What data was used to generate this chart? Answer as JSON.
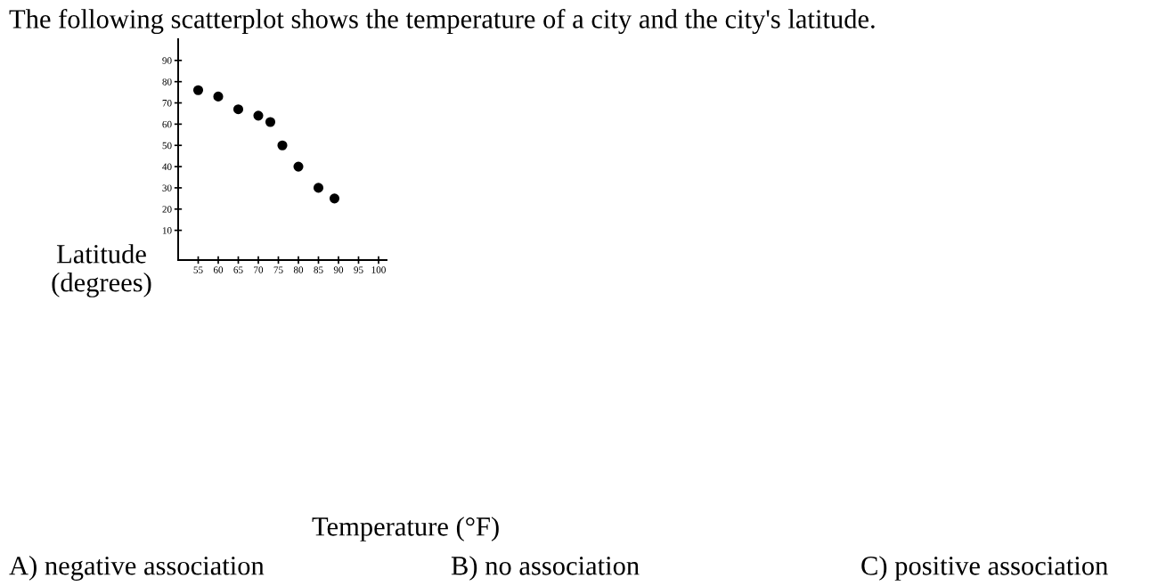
{
  "chart_data": {
    "type": "scatter",
    "title": "The following scatterplot shows the temperature of a city and the city's latitude.",
    "ylabel": "Latitude\n(degrees)",
    "x": [
      55,
      60,
      65,
      70,
      73,
      76,
      80,
      85,
      89
    ],
    "series": [
      {
        "color": "#000000",
        "values": [
          76,
          73,
          67,
          64,
          61,
          50,
          40,
          30,
          25
        ]
      }
    ],
    "xlim": [
      50,
      102
    ],
    "xticks": [
      55,
      60,
      65,
      70,
      75,
      80,
      85,
      90,
      95,
      100
    ],
    "ylim": [
      -4,
      100
    ],
    "yticks": [
      10,
      20,
      30,
      40,
      50,
      60,
      70,
      80,
      90
    ],
    "grid": false,
    "legend": false,
    "marker": "circle",
    "annotations": [
      "Temperature (°F)",
      "A) negative association",
      "B) no association",
      "C) positive association"
    ]
  }
}
